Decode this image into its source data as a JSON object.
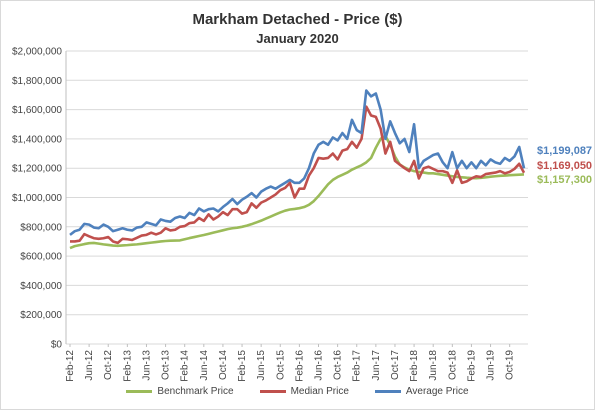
{
  "chart_data": {
    "type": "line",
    "title": "Markham Detached - Price ($)",
    "subtitle": "January 2020",
    "ylim": [
      0,
      2000000
    ],
    "y_ticks": [
      "$0",
      "$200,000",
      "$400,000",
      "$600,000",
      "$800,000",
      "$1,000,000",
      "$1,200,000",
      "$1,400,000",
      "$1,600,000",
      "$1,800,000",
      "$2,000,000"
    ],
    "x_start": "Feb-12",
    "x_end": "Jan-20",
    "x_tick_labels": [
      "Feb-12",
      "Jun-12",
      "Oct-12",
      "Feb-13",
      "Jun-13",
      "Oct-13",
      "Feb-14",
      "Jun-14",
      "Oct-14",
      "Feb-15",
      "Jun-15",
      "Oct-15",
      "Feb-16",
      "Jun-16",
      "Oct-16",
      "Feb-17",
      "Jun-17",
      "Oct-17",
      "Feb-18",
      "Jun-18",
      "Oct-18",
      "Feb-19",
      "Jun-19",
      "Oct-19"
    ],
    "grid": true,
    "legend_position": "bottom",
    "series": [
      {
        "name": "Benchmark Price",
        "color": "#9bbb59",
        "end_label": "$1,157,300",
        "values": [
          655000,
          668000,
          675000,
          682000,
          688000,
          690000,
          685000,
          680000,
          676000,
          672000,
          670000,
          673000,
          675000,
          678000,
          680000,
          684000,
          688000,
          692000,
          696000,
          700000,
          703000,
          705000,
          706000,
          707000,
          715000,
          723000,
          730000,
          737000,
          744000,
          752000,
          760000,
          768000,
          776000,
          784000,
          790000,
          794000,
          800000,
          808000,
          818000,
          830000,
          842000,
          856000,
          870000,
          884000,
          898000,
          910000,
          918000,
          922000,
          927000,
          935000,
          950000,
          975000,
          1010000,
          1050000,
          1090000,
          1120000,
          1140000,
          1155000,
          1170000,
          1190000,
          1205000,
          1220000,
          1240000,
          1270000,
          1340000,
          1400000,
          1420000,
          1360000,
          1280000,
          1225000,
          1205000,
          1190000,
          1180000,
          1175000,
          1170000,
          1165000,
          1165000,
          1160000,
          1155000,
          1150000,
          1145000,
          1140000,
          1138000,
          1135000,
          1133000,
          1132000,
          1134000,
          1138000,
          1142000,
          1145000,
          1148000,
          1150000,
          1152000,
          1154000,
          1156000,
          1157300
        ]
      },
      {
        "name": "Median Price",
        "color": "#c0504d",
        "end_label": "$1,169,050",
        "values": [
          700000,
          700000,
          705000,
          750000,
          735000,
          722000,
          718000,
          722000,
          730000,
          700000,
          690000,
          718000,
          715000,
          710000,
          725000,
          740000,
          745000,
          760000,
          748000,
          760000,
          790000,
          775000,
          780000,
          800000,
          805000,
          825000,
          830000,
          860000,
          840000,
          885000,
          850000,
          870000,
          900000,
          880000,
          920000,
          920000,
          890000,
          900000,
          960000,
          930000,
          965000,
          980000,
          1000000,
          1020000,
          1050000,
          1065000,
          1100000,
          1000000,
          1060000,
          1060000,
          1150000,
          1200000,
          1270000,
          1265000,
          1270000,
          1300000,
          1260000,
          1320000,
          1330000,
          1380000,
          1340000,
          1400000,
          1620000,
          1560000,
          1550000,
          1470000,
          1300000,
          1380000,
          1250000,
          1225000,
          1200000,
          1180000,
          1250000,
          1130000,
          1200000,
          1210000,
          1195000,
          1180000,
          1180000,
          1170000,
          1100000,
          1185000,
          1100000,
          1110000,
          1130000,
          1145000,
          1140000,
          1160000,
          1165000,
          1170000,
          1180000,
          1165000,
          1175000,
          1195000,
          1230000,
          1169050
        ]
      },
      {
        "name": "Average Price",
        "color": "#4f81bd",
        "end_label": "$1,199,087",
        "values": [
          745000,
          770000,
          780000,
          820000,
          815000,
          795000,
          790000,
          815000,
          800000,
          770000,
          780000,
          790000,
          780000,
          775000,
          795000,
          800000,
          830000,
          820000,
          810000,
          850000,
          840000,
          835000,
          860000,
          870000,
          860000,
          895000,
          880000,
          925000,
          905000,
          920000,
          925000,
          905000,
          935000,
          960000,
          990000,
          955000,
          985000,
          1005000,
          1030000,
          1000000,
          1040000,
          1060000,
          1075000,
          1060000,
          1080000,
          1100000,
          1120000,
          1100000,
          1100000,
          1130000,
          1200000,
          1300000,
          1360000,
          1380000,
          1360000,
          1410000,
          1390000,
          1440000,
          1400000,
          1530000,
          1460000,
          1440000,
          1730000,
          1690000,
          1710000,
          1600000,
          1400000,
          1520000,
          1440000,
          1370000,
          1400000,
          1310000,
          1500000,
          1200000,
          1250000,
          1270000,
          1290000,
          1300000,
          1240000,
          1200000,
          1310000,
          1200000,
          1250000,
          1200000,
          1240000,
          1200000,
          1250000,
          1220000,
          1260000,
          1240000,
          1230000,
          1270000,
          1250000,
          1280000,
          1345000,
          1199087
        ]
      }
    ]
  }
}
